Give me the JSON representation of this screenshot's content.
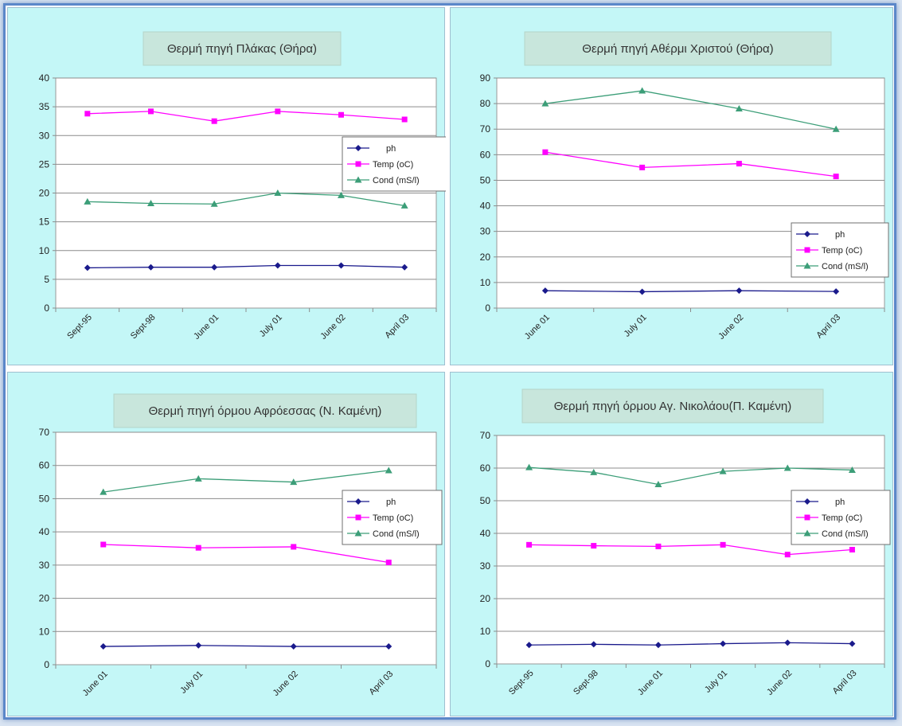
{
  "chart_data": [
    {
      "type": "line",
      "title": "Θερμή πηγή Πλάκας (Θήρα)",
      "categories": [
        "Sept-95",
        "Sept-98",
        "June 01",
        "July 01",
        "June 02",
        "April 03"
      ],
      "ylim": [
        0,
        40
      ],
      "yticks": [
        "0",
        "5",
        "10",
        "15",
        "20",
        "25",
        "30",
        "35",
        "40"
      ],
      "legend_position": "right",
      "series": [
        {
          "name": "ph",
          "color": "#1a1a8c",
          "marker": "diamond",
          "values": [
            7.0,
            7.1,
            7.1,
            7.4,
            7.4,
            7.1
          ]
        },
        {
          "name": "Temp (oC)",
          "color": "#ff00ff",
          "marker": "square",
          "values": [
            33.8,
            34.2,
            32.5,
            34.2,
            33.6,
            32.8
          ]
        },
        {
          "name": "Cond (mS/l)",
          "color": "#3c9e78",
          "marker": "triangle",
          "values": [
            18.5,
            18.2,
            18.1,
            20.0,
            19.6,
            17.8
          ]
        }
      ]
    },
    {
      "type": "line",
      "title": "Θερμή πηγή Αθέρμι Χριστού (Θήρα)",
      "categories": [
        "June 01",
        "July 01",
        "June 02",
        "April 03"
      ],
      "ylim": [
        0,
        90
      ],
      "yticks": [
        "0",
        "10",
        "20",
        "30",
        "40",
        "50",
        "60",
        "70",
        "80",
        "90"
      ],
      "legend_position": "bottom-right",
      "series": [
        {
          "name": "ph",
          "color": "#1a1a8c",
          "marker": "diamond",
          "values": [
            6.8,
            6.4,
            6.8,
            6.5
          ]
        },
        {
          "name": "Temp (oC)",
          "color": "#ff00ff",
          "marker": "square",
          "values": [
            61,
            55,
            56.5,
            51.5
          ]
        },
        {
          "name": "Cond (mS/l)",
          "color": "#3c9e78",
          "marker": "triangle",
          "values": [
            80,
            85,
            78,
            70
          ]
        }
      ]
    },
    {
      "type": "line",
      "title": "Θερμή πηγή όρμου Αφρόεσσας (Ν. Καμένη)",
      "categories": [
        "June 01",
        "July 01",
        "June 02",
        "April 03"
      ],
      "ylim": [
        0,
        70
      ],
      "yticks": [
        "0",
        "10",
        "20",
        "30",
        "40",
        "50",
        "60",
        "70"
      ],
      "legend_position": "right",
      "series": [
        {
          "name": "ph",
          "color": "#1a1a8c",
          "marker": "diamond",
          "values": [
            5.5,
            5.8,
            5.5,
            5.5
          ]
        },
        {
          "name": "Temp (oC)",
          "color": "#ff00ff",
          "marker": "square",
          "values": [
            36.2,
            35.2,
            35.5,
            30.8
          ]
        },
        {
          "name": "Cond (mS/l)",
          "color": "#3c9e78",
          "marker": "triangle",
          "values": [
            52,
            56,
            55,
            58.5
          ]
        }
      ]
    },
    {
      "type": "line",
      "title": "Θερμή πηγή όρμου Αγ. Νικολάου(Π. Καμένη)",
      "categories": [
        "Sept-95",
        "Sept-98",
        "June 01",
        "July 01",
        "June 02",
        "April 03"
      ],
      "ylim": [
        0,
        70
      ],
      "yticks": [
        "0",
        "10",
        "20",
        "30",
        "40",
        "50",
        "60",
        "70"
      ],
      "legend_position": "right",
      "series": [
        {
          "name": "ph",
          "color": "#1a1a8c",
          "marker": "diamond",
          "values": [
            5.8,
            6.0,
            5.8,
            6.2,
            6.5,
            6.2
          ]
        },
        {
          "name": "Temp (oC)",
          "color": "#ff00ff",
          "marker": "square",
          "values": [
            36.5,
            36.2,
            36.0,
            36.5,
            33.5,
            35.0
          ]
        },
        {
          "name": "Cond (mS/l)",
          "color": "#3c9e78",
          "marker": "triangle",
          "values": [
            60.2,
            58.7,
            55,
            59,
            60,
            59.4
          ]
        }
      ]
    }
  ]
}
